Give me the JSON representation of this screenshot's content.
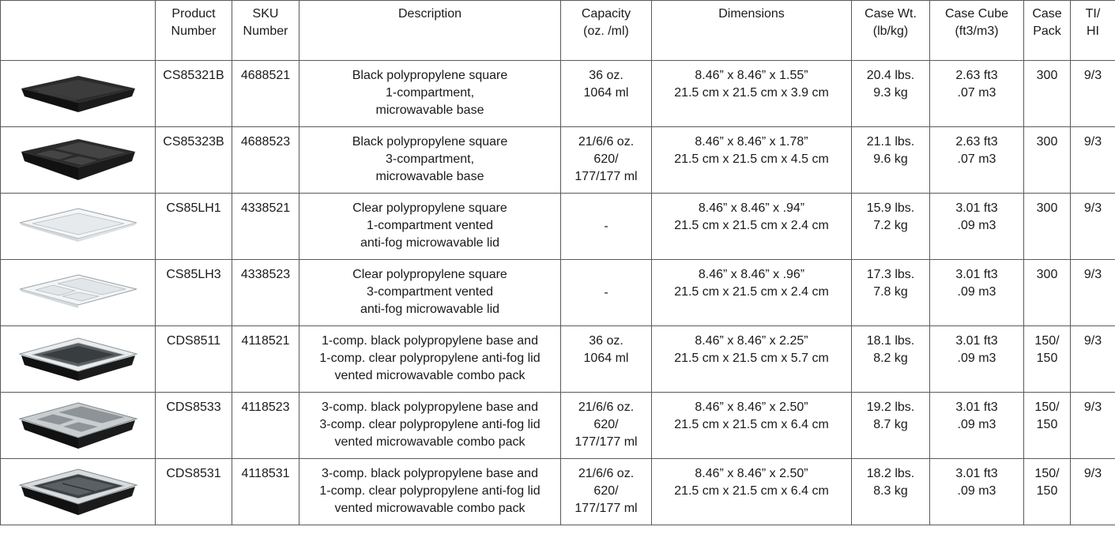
{
  "table": {
    "headers": [
      "",
      "Product\nNumber",
      "SKU\nNumber",
      "Description",
      "Capacity\n(oz. /ml)",
      "Dimensions",
      "Case Wt.\n(lb/kg)",
      "Case Cube\n(ft3/m3)",
      "Case\nPack",
      "TI/\nHI"
    ],
    "rows": [
      {
        "image": "black-1-compartment-base-image",
        "product_number": "CS85321B",
        "sku": "4688521",
        "description": "Black polypropylene square\n1-compartment,\nmicrowavable base",
        "capacity": "36 oz.\n1064 ml",
        "dimensions": "8.46” x 8.46” x 1.55”\n21.5 cm x 21.5 cm x 3.9 cm",
        "case_wt": "20.4 lbs.\n9.3 kg",
        "case_cube": "2.63 ft3\n.07 m3",
        "case_pack": "300",
        "ti_hi": "9/3"
      },
      {
        "image": "black-3-compartment-base-image",
        "product_number": "CS85323B",
        "sku": "4688523",
        "description": "Black polypropylene square\n3-compartment,\nmicrowavable base",
        "capacity": "21/6/6 oz.\n620/\n177/177 ml",
        "dimensions": "8.46” x 8.46” x 1.78”\n21.5 cm x 21.5 cm x 4.5 cm",
        "case_wt": "21.1 lbs.\n9.6 kg",
        "case_cube": "2.63 ft3\n.07 m3",
        "case_pack": "300",
        "ti_hi": "9/3"
      },
      {
        "image": "clear-1-compartment-lid-image",
        "product_number": "CS85LH1",
        "sku": "4338521",
        "description": "Clear polypropylene square\n1-compartment vented\nanti-fog microwavable lid",
        "capacity": "-",
        "dimensions": "8.46” x 8.46” x .94”\n21.5 cm x 21.5 cm x 2.4 cm",
        "case_wt": "15.9 lbs.\n7.2 kg",
        "case_cube": "3.01 ft3\n.09 m3",
        "case_pack": "300",
        "ti_hi": "9/3"
      },
      {
        "image": "clear-3-compartment-lid-image",
        "product_number": "CS85LH3",
        "sku": "4338523",
        "description": "Clear polypropylene square\n3-compartment vented\nanti-fog microwavable lid",
        "capacity": "-",
        "dimensions": "8.46” x 8.46” x .96”\n21.5 cm x 21.5 cm x 2.4 cm",
        "case_wt": "17.3 lbs.\n7.8 kg",
        "case_cube": "3.01 ft3\n.09 m3",
        "case_pack": "300",
        "ti_hi": "9/3"
      },
      {
        "image": "1-compartment-combo-pack-image",
        "product_number": "CDS8511",
        "sku": "4118521",
        "description": "1-comp. black polypropylene base and\n1-comp. clear polypropylene anti-fog lid\nvented microwavable combo pack",
        "capacity": "36 oz.\n1064 ml",
        "dimensions": "8.46” x 8.46” x 2.25”\n21.5 cm x 21.5 cm x 5.7 cm",
        "case_wt": "18.1 lbs.\n8.2 kg",
        "case_cube": "3.01 ft3\n.09 m3",
        "case_pack": "150/\n150",
        "ti_hi": "9/3"
      },
      {
        "image": "3-compartment-combo-pack-image",
        "product_number": "CDS8533",
        "sku": "4118523",
        "description": "3-comp. black polypropylene base and\n3-comp. clear polypropylene anti-fog lid\nvented microwavable combo pack",
        "capacity": "21/6/6 oz.\n620/\n177/177 ml",
        "dimensions": "8.46” x 8.46” x 2.50”\n21.5 cm x 21.5 cm x 6.4 cm",
        "case_wt": "19.2 lbs.\n8.7 kg",
        "case_cube": "3.01 ft3\n.09 m3",
        "case_pack": "150/\n150",
        "ti_hi": "9/3"
      },
      {
        "image": "3-compartment-base-1-compartment-lid-combo-image",
        "product_number": "CDS8531",
        "sku": "4118531",
        "description": "3-comp. black polypropylene base and\n1-comp. clear polypropylene anti-fog lid\nvented microwavable combo pack",
        "capacity": "21/6/6 oz.\n620/\n177/177 ml",
        "dimensions": "8.46” x 8.46” x 2.50”\n21.5 cm x 21.5 cm x 6.4 cm",
        "case_wt": "18.2 lbs.\n8.3 kg",
        "case_cube": "3.01 ft3\n.09 m3",
        "case_pack": "150/\n150",
        "ti_hi": "9/3"
      }
    ]
  }
}
